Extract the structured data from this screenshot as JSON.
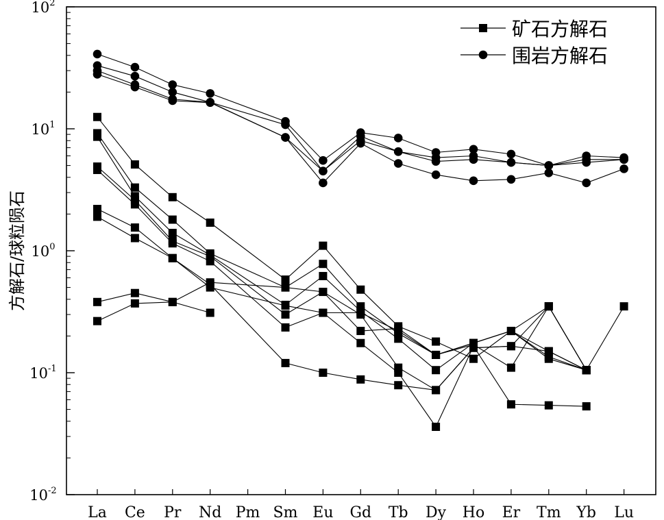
{
  "chart_data": {
    "type": "line",
    "ylabel": "方解石/球粒陨石",
    "xlabel": "",
    "yscale": "log",
    "ylim": [
      0.01,
      100
    ],
    "y_ticks": [
      {
        "base": "10",
        "exp": "2",
        "value": 100
      },
      {
        "base": "10",
        "exp": "1",
        "value": 10
      },
      {
        "base": "10",
        "exp": "0",
        "value": 1
      },
      {
        "base": "10",
        "exp": "-1",
        "value": 0.1
      },
      {
        "base": "10",
        "exp": "-2",
        "value": 0.01
      }
    ],
    "categories": [
      "La",
      "Ce",
      "Pr",
      "Nd",
      "Pm",
      "Sm",
      "Eu",
      "Gd",
      "Tb",
      "Dy",
      "Ho",
      "Er",
      "Tm",
      "Yb",
      "Lu"
    ],
    "legend": {
      "position": "top-right",
      "entries": [
        {
          "label": "矿石方解石",
          "marker": "square"
        },
        {
          "label": "围岩方解石",
          "marker": "circle"
        }
      ]
    },
    "series": [
      {
        "group": "ore",
        "marker": "square",
        "values": [
          12.5,
          5.1,
          2.75,
          1.7,
          null,
          0.58,
          1.1,
          0.48,
          0.24,
          0.18,
          0.13,
          0.22,
          0.35,
          0.105,
          null
        ]
      },
      {
        "group": "ore",
        "marker": "square",
        "values": [
          9.2,
          3.3,
          1.8,
          0.95,
          null,
          0.5,
          0.78,
          0.35,
          0.21,
          0.14,
          0.17,
          0.11,
          0.35,
          0.105,
          null
        ]
      },
      {
        "group": "ore",
        "marker": "square",
        "values": [
          8.6,
          2.8,
          1.4,
          0.92,
          null,
          0.36,
          0.62,
          0.32,
          0.19,
          0.105,
          0.175,
          0.22,
          0.13,
          0.105,
          null
        ]
      },
      {
        "group": "ore",
        "marker": "square",
        "values": [
          4.9,
          2.6,
          1.2,
          0.9,
          null,
          0.3,
          0.46,
          0.3,
          0.11,
          0.072,
          0.16,
          0.165,
          0.15,
          0.105,
          null
        ]
      },
      {
        "group": "ore",
        "marker": "square",
        "values": [
          4.6,
          2.4,
          1.15,
          0.82,
          null,
          0.235,
          0.31,
          0.175,
          0.1,
          0.036,
          0.165,
          0.055,
          0.054,
          0.053,
          null
        ]
      },
      {
        "group": "ore",
        "marker": "square",
        "values": [
          2.2,
          1.55,
          0.87,
          0.53,
          null,
          0.12,
          0.1,
          0.088,
          0.079,
          0.072,
          0.16,
          0.165,
          0.35,
          0.105,
          0.35
        ]
      },
      {
        "group": "ore",
        "marker": "square",
        "values": [
          1.9,
          1.27,
          0.87,
          0.5,
          null,
          0.355,
          0.31,
          0.31,
          0.22,
          0.14,
          0.175,
          0.22,
          0.15,
          0.105,
          null
        ]
      },
      {
        "group": "ore",
        "marker": "square",
        "values": [
          0.38,
          0.45,
          0.38,
          0.31,
          null,
          null,
          null,
          null,
          null,
          null,
          null,
          null,
          null,
          null,
          null
        ]
      },
      {
        "group": "ore",
        "marker": "square",
        "values": [
          0.265,
          0.37,
          0.38,
          0.55,
          null,
          0.5,
          0.46,
          0.22,
          0.23,
          0.14,
          0.175,
          0.22,
          0.135,
          0.105,
          null
        ]
      },
      {
        "group": "wall",
        "marker": "circle",
        "values": [
          41,
          32,
          23,
          19.5,
          null,
          11.5,
          5.5,
          9.3,
          8.4,
          6.4,
          6.8,
          6.2,
          5.0,
          6.0,
          5.8
        ]
      },
      {
        "group": "wall",
        "marker": "circle",
        "values": [
          33,
          27,
          20,
          16.5,
          null,
          10.8,
          4.5,
          8.7,
          6.5,
          5.8,
          6.0,
          5.3,
          5.0,
          5.6,
          5.6
        ]
      },
      {
        "group": "wall",
        "marker": "circle",
        "values": [
          30,
          23,
          17.5,
          16.5,
          null,
          8.5,
          4.5,
          8.0,
          6.5,
          5.4,
          5.6,
          5.3,
          5.0,
          5.3,
          5.6
        ]
      },
      {
        "group": "wall",
        "marker": "circle",
        "values": [
          28,
          22,
          17,
          16.4,
          null,
          8.5,
          3.6,
          7.6,
          5.2,
          4.2,
          3.75,
          3.85,
          4.35,
          3.6,
          4.7
        ]
      }
    ]
  }
}
